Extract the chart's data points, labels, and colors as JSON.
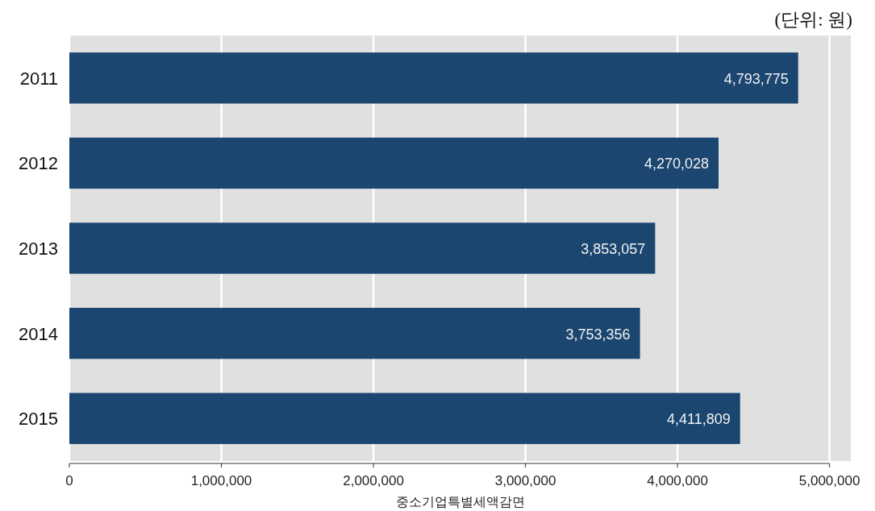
{
  "chart_data": {
    "type": "bar",
    "orientation": "horizontal",
    "xlabel": "중소기업특별세액감면",
    "annotations": [
      "(단위: 원)"
    ],
    "categories": [
      "2011",
      "2012",
      "2013",
      "2014",
      "2015"
    ],
    "values": [
      4793775,
      4270028,
      3853057,
      3753356,
      4411809
    ],
    "color": "#1b4670",
    "data_labels": true,
    "value_labels": [
      "4,793,775",
      "4,270,028",
      "3,853,057",
      "3,753,356",
      "4,411,809"
    ],
    "xlim": [
      0,
      5140000
    ],
    "xticks": [
      {
        "value": 0,
        "label": "0"
      },
      {
        "value": 1000000,
        "label": "1,000,000"
      },
      {
        "value": 2000000,
        "label": "2,000,000"
      },
      {
        "value": 3000000,
        "label": "3,000,000"
      },
      {
        "value": 4000000,
        "label": "4,000,000"
      },
      {
        "value": 5000000,
        "label": "5,000,000"
      }
    ],
    "grid": "x"
  }
}
